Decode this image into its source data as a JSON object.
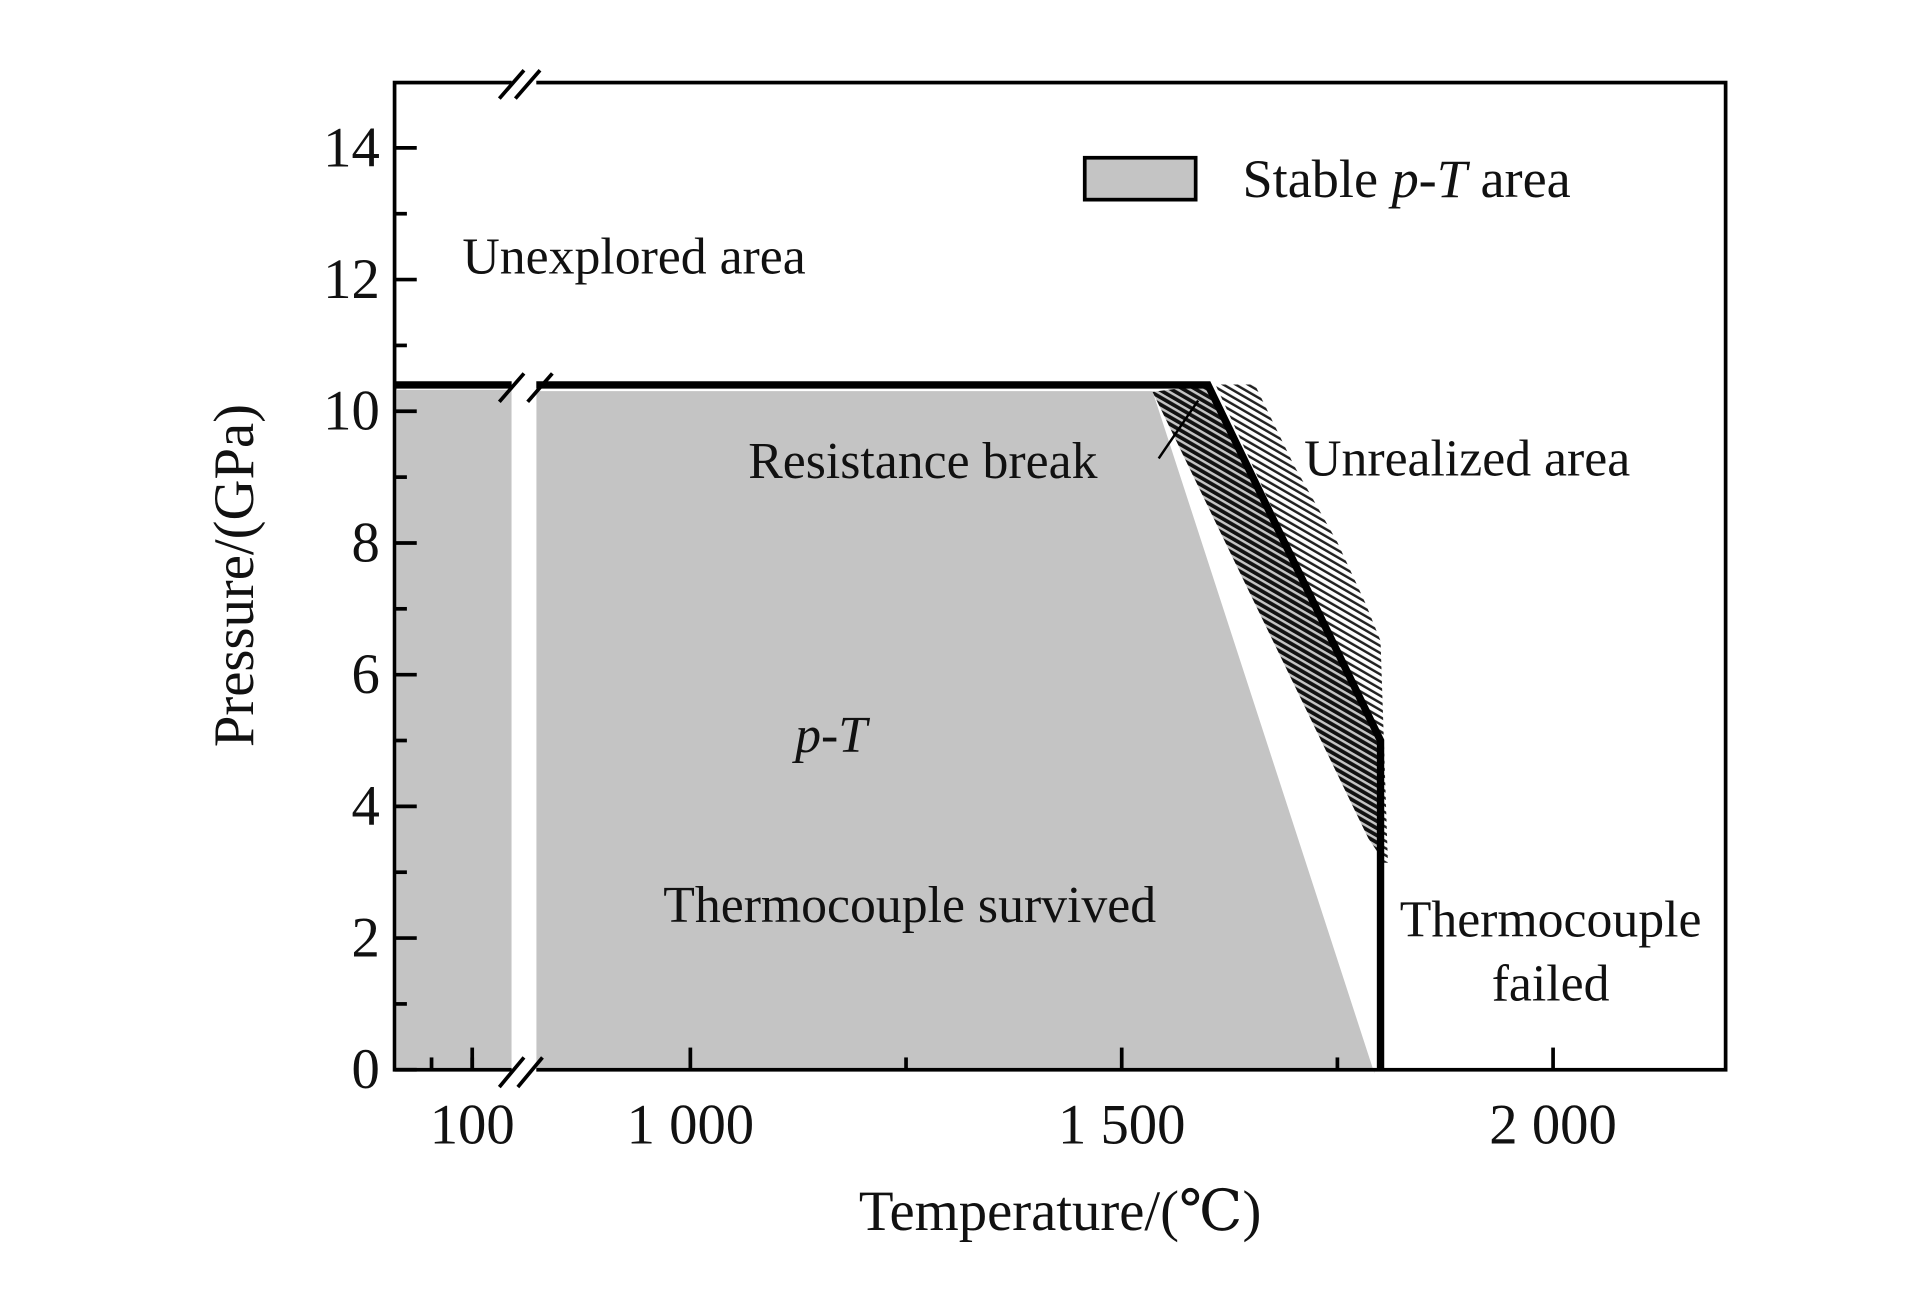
{
  "chart_data": {
    "type": "area",
    "title": "",
    "xlabel": "Temperature/(℃)",
    "ylabel": "Pressure/(GPa)",
    "x_axis": {
      "broken": true,
      "segments": [
        [
          20,
          150
        ],
        [
          830,
          2200
        ]
      ],
      "ticks": [
        {
          "value": 100,
          "label": "100"
        },
        {
          "value": 1000,
          "label": "1 000"
        },
        {
          "value": 1500,
          "label": "1 500"
        },
        {
          "value": 2000,
          "label": "2 000"
        }
      ],
      "minor_ticks": [
        50,
        100,
        1250,
        1750
      ]
    },
    "y_axis": {
      "range": [
        0,
        15
      ],
      "ticks": [
        0,
        2,
        4,
        6,
        8,
        10,
        12,
        14
      ],
      "minor_step": 1
    },
    "grid": false,
    "legend": {
      "placement": "top-right",
      "prefix": "Stable ",
      "italic": "p-T",
      "suffix": " area"
    },
    "series": [
      {
        "name": "Stable p-T area",
        "boundary": [
          [
            20,
            10.4
          ],
          [
            1600,
            10.4
          ],
          [
            1800,
            5.0
          ],
          [
            1800,
            0
          ]
        ],
        "fill": "#c4c4c4",
        "edge_color": "#000000"
      }
    ],
    "annotations": {
      "unexplored": "Unexplored area",
      "resistance_break": "Resistance break",
      "unrealized": "Unrealized area",
      "pt": "p-T",
      "survived": "Thermocouple survived",
      "failed_line1": "Thermocouple",
      "failed_line2": "failed"
    }
  }
}
